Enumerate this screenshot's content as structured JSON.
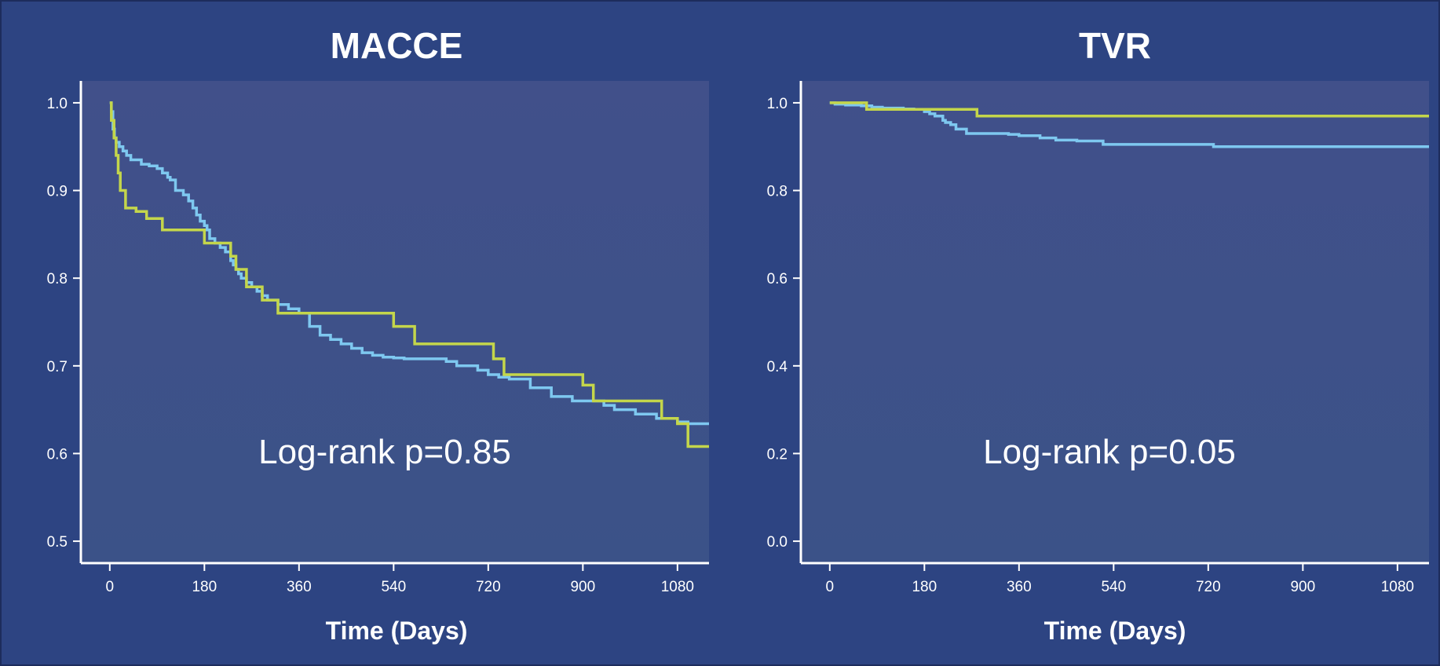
{
  "colors": {
    "background": "#2d4482",
    "plot_bg_top": "#41508a",
    "plot_bg_bottom": "#3b5288",
    "series_blue": "#7ec8f0",
    "series_green": "#c4d64b",
    "axis": "#ffffff"
  },
  "chart_data": [
    {
      "type": "line",
      "step": true,
      "title": "MACCE",
      "xlabel": "Time (Days)",
      "ylabel": "",
      "xlim": [
        -55,
        1140
      ],
      "ylim": [
        0.475,
        1.025
      ],
      "xticks": [
        0,
        180,
        360,
        540,
        720,
        900,
        1080
      ],
      "yticks": [
        0.5,
        0.6,
        0.7,
        0.8,
        0.9,
        1.0
      ],
      "ytick_labels": [
        "0.5",
        "0.6",
        "0.7",
        "0.8",
        "0.9",
        "1.0"
      ],
      "annotation": "Log-rank p=0.85",
      "grid": false,
      "series": [
        {
          "color": "#7ec8f0",
          "x": [
            0,
            3,
            6,
            9,
            12,
            18,
            25,
            32,
            40,
            60,
            75,
            90,
            100,
            110,
            115,
            125,
            140,
            150,
            158,
            165,
            172,
            180,
            185,
            190,
            200,
            210,
            220,
            230,
            235,
            240,
            245,
            250,
            260,
            270,
            280,
            290,
            300,
            320,
            340,
            360,
            380,
            400,
            420,
            440,
            460,
            480,
            500,
            520,
            540,
            560,
            600,
            640,
            660,
            680,
            700,
            720,
            740,
            760,
            800,
            840,
            880,
            900,
            940,
            960,
            1000,
            1040,
            1060,
            1080,
            1100,
            1140
          ],
          "y": [
            1.0,
            0.99,
            0.97,
            0.96,
            0.955,
            0.95,
            0.945,
            0.94,
            0.935,
            0.93,
            0.928,
            0.925,
            0.92,
            0.915,
            0.912,
            0.9,
            0.895,
            0.888,
            0.88,
            0.872,
            0.865,
            0.86,
            0.855,
            0.845,
            0.84,
            0.835,
            0.83,
            0.82,
            0.815,
            0.81,
            0.805,
            0.8,
            0.795,
            0.79,
            0.785,
            0.78,
            0.775,
            0.77,
            0.765,
            0.76,
            0.745,
            0.735,
            0.73,
            0.725,
            0.72,
            0.715,
            0.712,
            0.71,
            0.709,
            0.708,
            0.708,
            0.705,
            0.7,
            0.7,
            0.695,
            0.69,
            0.687,
            0.685,
            0.675,
            0.665,
            0.66,
            0.66,
            0.655,
            0.65,
            0.645,
            0.64,
            0.64,
            0.636,
            0.634,
            0.634
          ]
        },
        {
          "color": "#c4d64b",
          "x": [
            0,
            3,
            8,
            12,
            16,
            20,
            30,
            50,
            70,
            100,
            130,
            150,
            180,
            200,
            220,
            230,
            240,
            260,
            290,
            320,
            360,
            420,
            520,
            540,
            560,
            580,
            700,
            730,
            750,
            800,
            850,
            880,
            900,
            920,
            940,
            1000,
            1050,
            1080,
            1100,
            1140
          ],
          "y": [
            1.0,
            0.98,
            0.96,
            0.94,
            0.92,
            0.9,
            0.88,
            0.876,
            0.868,
            0.855,
            0.855,
            0.855,
            0.84,
            0.84,
            0.84,
            0.825,
            0.81,
            0.79,
            0.775,
            0.76,
            0.76,
            0.76,
            0.76,
            0.745,
            0.745,
            0.725,
            0.725,
            0.708,
            0.69,
            0.69,
            0.69,
            0.69,
            0.678,
            0.66,
            0.66,
            0.66,
            0.64,
            0.634,
            0.608,
            0.608
          ]
        }
      ]
    },
    {
      "type": "line",
      "step": true,
      "title": "TVR",
      "xlabel": "Time (Days)",
      "ylabel": "",
      "xlim": [
        -55,
        1140
      ],
      "ylim": [
        -0.05,
        1.05
      ],
      "xticks": [
        0,
        180,
        360,
        540,
        720,
        900,
        1080
      ],
      "yticks": [
        0.0,
        0.2,
        0.4,
        0.6,
        0.8,
        1.0
      ],
      "ytick_labels": [
        "0.0",
        "0.2",
        "0.4",
        "0.6",
        "0.8",
        "1.0"
      ],
      "annotation": "Log-rank p=0.05",
      "grid": false,
      "series": [
        {
          "color": "#7ec8f0",
          "x": [
            0,
            10,
            30,
            60,
            80,
            100,
            140,
            160,
            180,
            190,
            200,
            215,
            220,
            230,
            240,
            260,
            300,
            340,
            360,
            380,
            400,
            430,
            470,
            500,
            520,
            560,
            600,
            700,
            730,
            800,
            900,
            1000,
            1100,
            1140
          ],
          "y": [
            1.0,
            0.997,
            0.995,
            0.993,
            0.99,
            0.988,
            0.986,
            0.985,
            0.98,
            0.975,
            0.97,
            0.96,
            0.955,
            0.95,
            0.94,
            0.93,
            0.93,
            0.928,
            0.925,
            0.925,
            0.92,
            0.915,
            0.913,
            0.913,
            0.905,
            0.905,
            0.905,
            0.905,
            0.9,
            0.9,
            0.9,
            0.9,
            0.9,
            0.9
          ]
        },
        {
          "color": "#c4d64b",
          "x": [
            0,
            10,
            30,
            50,
            70,
            80,
            100,
            150,
            200,
            250,
            280,
            290,
            400,
            600,
            800,
            1000,
            1140
          ],
          "y": [
            1.0,
            1.0,
            1.0,
            1.0,
            0.985,
            0.985,
            0.985,
            0.985,
            0.985,
            0.985,
            0.97,
            0.97,
            0.97,
            0.97,
            0.97,
            0.97,
            0.97
          ]
        }
      ]
    }
  ]
}
